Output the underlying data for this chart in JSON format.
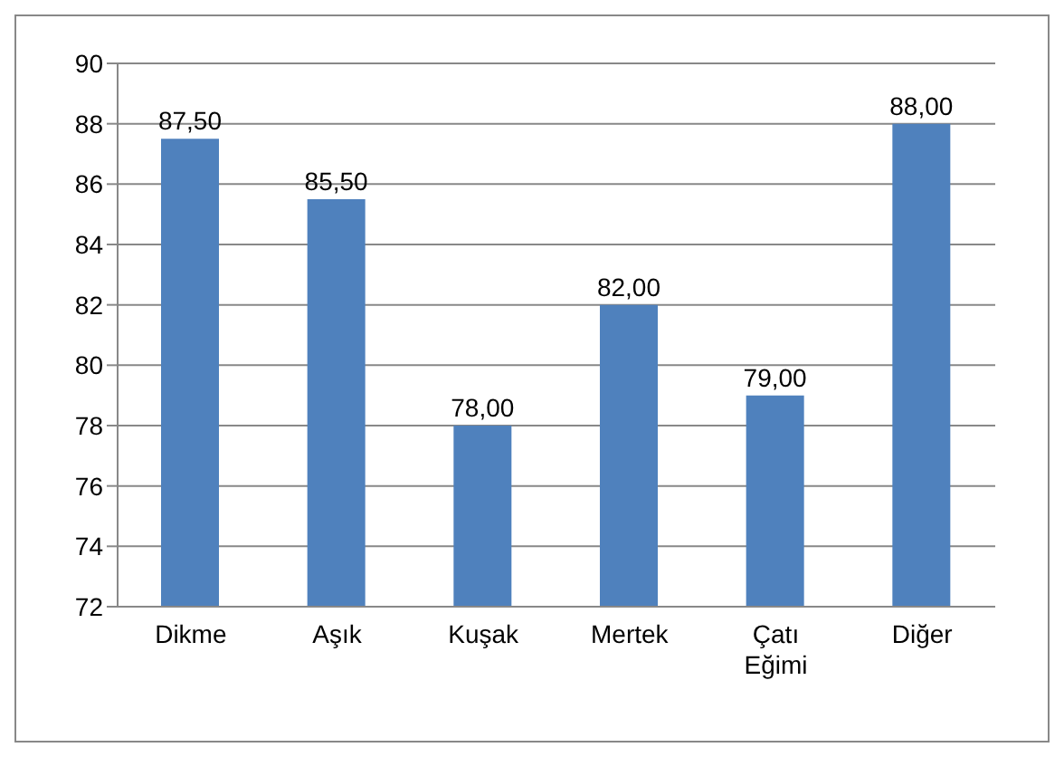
{
  "chart_data": {
    "type": "bar",
    "categories": [
      "Dikme",
      "Aşık",
      "Kuşak",
      "Mertek",
      "Çatı Eğimi",
      "Diğer"
    ],
    "values": [
      87.5,
      85.5,
      78,
      82,
      79,
      88
    ],
    "value_labels": [
      "87,50",
      "85,50",
      "78,00",
      "82,00",
      "79,00",
      "88,00"
    ],
    "color": "#4f81bd",
    "ylim": [
      72,
      90
    ],
    "yticks": [
      72,
      74,
      76,
      78,
      80,
      82,
      84,
      86,
      88,
      90
    ],
    "grid": "y"
  }
}
